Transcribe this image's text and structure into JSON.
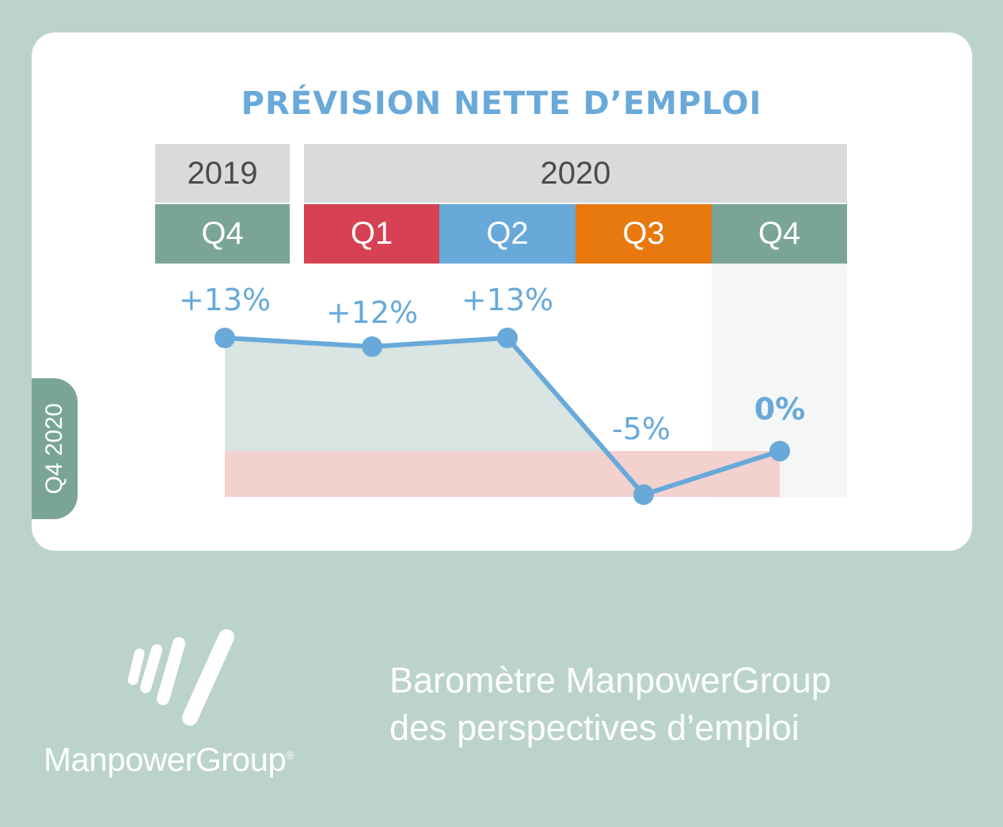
{
  "title": "PRÉVISION NETTE D’EMPLOI",
  "years": [
    {
      "label": "2019"
    },
    {
      "label": "2020"
    }
  ],
  "quarters": [
    {
      "label": "Q4",
      "color": "#7aa596"
    },
    {
      "label": "Q1",
      "color": "#d64253"
    },
    {
      "label": "Q2",
      "color": "#68a9da"
    },
    {
      "label": "Q3",
      "color": "#e8790f"
    },
    {
      "label": "Q4",
      "color": "#7aa596"
    }
  ],
  "side_label": "Q4 2020",
  "chart_data": {
    "type": "line",
    "categories": [
      "Q4 2019",
      "Q1 2020",
      "Q2 2020",
      "Q3 2020",
      "Q4 2020"
    ],
    "series": [
      {
        "values": [
          13,
          12,
          13,
          -5,
          0
        ]
      }
    ],
    "data_labels": [
      "+13%",
      "+12%",
      "+13%",
      "-5%",
      "0%"
    ],
    "highlighted_index": 4,
    "line_color": "#68a9da",
    "positive_fill": "#d8e5e2",
    "negative_fill": "#f3d1cf",
    "xlabel": "",
    "ylabel": ""
  },
  "brand": {
    "name": "ManpowerGroup",
    "registered": "®",
    "tagline_line1": "Baromètre ManpowerGroup",
    "tagline_line2": "des perspectives d’emploi"
  },
  "colors": {
    "background": "#bcd3cc",
    "card": "#ffffff",
    "header_grey": "#d9dbdb"
  }
}
